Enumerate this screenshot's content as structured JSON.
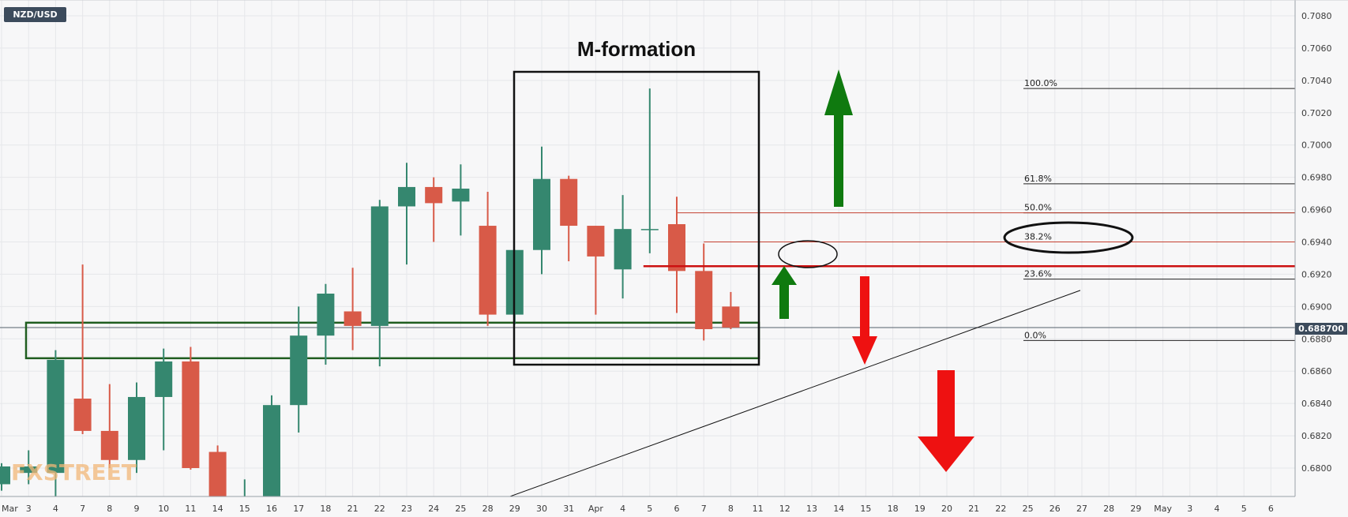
{
  "symbol": "NZD/USD",
  "watermark": "FXSTREET",
  "price_label": "0.688700",
  "colors": {
    "up": "#35876f",
    "down": "#d85a48",
    "background": "#f7f7f8",
    "badge": "#3c4b5c"
  },
  "chart_data": {
    "type": "candlestick",
    "title": "M-formation",
    "ylim": [
      0.678,
      0.709
    ],
    "y_ticks": [
      "0.6800",
      "0.6820",
      "0.6840",
      "0.6860",
      "0.6880",
      "0.6900",
      "0.6920",
      "0.6940",
      "0.6960",
      "0.6980",
      "0.7000",
      "0.7020",
      "0.7040",
      "0.7060",
      "0.7080"
    ],
    "x_ticks": [
      "Mar",
      "3",
      "4",
      "7",
      "8",
      "9",
      "10",
      "11",
      "14",
      "15",
      "16",
      "17",
      "18",
      "21",
      "22",
      "23",
      "24",
      "25",
      "28",
      "29",
      "30",
      "31",
      "Apr",
      "4",
      "5",
      "6",
      "7",
      "8",
      "11",
      "12",
      "13",
      "14",
      "15",
      "18",
      "19",
      "20",
      "21",
      "22",
      "25",
      "26",
      "27",
      "28",
      "29",
      "May",
      "3",
      "4",
      "5",
      "6"
    ],
    "candles": [
      {
        "date": "Mar 2",
        "open": 0.679,
        "high": 0.6803,
        "low": 0.6786,
        "close": 0.6801
      },
      {
        "date": "Mar 3",
        "open": 0.6797,
        "high": 0.6811,
        "low": 0.679,
        "close": 0.6801
      },
      {
        "date": "Mar 4",
        "open": 0.6797,
        "high": 0.6873,
        "low": 0.6782,
        "close": 0.6867
      },
      {
        "date": "Mar 7",
        "open": 0.6843,
        "high": 0.6926,
        "low": 0.6821,
        "close": 0.6823
      },
      {
        "date": "Mar 8",
        "open": 0.6823,
        "high": 0.6852,
        "low": 0.68,
        "close": 0.6805
      },
      {
        "date": "Mar 9",
        "open": 0.6805,
        "high": 0.6853,
        "low": 0.6797,
        "close": 0.6844
      },
      {
        "date": "Mar 10",
        "open": 0.6844,
        "high": 0.6874,
        "low": 0.6811,
        "close": 0.6866
      },
      {
        "date": "Mar 11",
        "open": 0.6866,
        "high": 0.6875,
        "low": 0.6799,
        "close": 0.68
      },
      {
        "date": "Mar 14",
        "open": 0.681,
        "high": 0.6814,
        "low": 0.677,
        "close": 0.6772
      },
      {
        "date": "Mar 15",
        "open": 0.6772,
        "high": 0.6793,
        "low": 0.6765,
        "close": 0.6776
      },
      {
        "date": "Mar 16",
        "open": 0.6776,
        "high": 0.6845,
        "low": 0.677,
        "close": 0.6839
      },
      {
        "date": "Mar 17",
        "open": 0.6839,
        "high": 0.69,
        "low": 0.6822,
        "close": 0.6882
      },
      {
        "date": "Mar 18",
        "open": 0.6882,
        "high": 0.6914,
        "low": 0.6864,
        "close": 0.6908
      },
      {
        "date": "Mar 21",
        "open": 0.6897,
        "high": 0.6924,
        "low": 0.6873,
        "close": 0.6888
      },
      {
        "date": "Mar 22",
        "open": 0.6888,
        "high": 0.6966,
        "low": 0.6863,
        "close": 0.6962
      },
      {
        "date": "Mar 23",
        "open": 0.6962,
        "high": 0.6989,
        "low": 0.6926,
        "close": 0.6974
      },
      {
        "date": "Mar 24",
        "open": 0.6974,
        "high": 0.698,
        "low": 0.694,
        "close": 0.6964
      },
      {
        "date": "Mar 25",
        "open": 0.6965,
        "high": 0.6988,
        "low": 0.6944,
        "close": 0.6973
      },
      {
        "date": "Mar 28",
        "open": 0.695,
        "high": 0.6971,
        "low": 0.6888,
        "close": 0.6895
      },
      {
        "date": "Mar 29",
        "open": 0.6895,
        "high": 0.6935,
        "low": 0.6889,
        "close": 0.6935
      },
      {
        "date": "Mar 30",
        "open": 0.6935,
        "high": 0.6999,
        "low": 0.692,
        "close": 0.6979
      },
      {
        "date": "Mar 31",
        "open": 0.6979,
        "high": 0.6981,
        "low": 0.6928,
        "close": 0.695
      },
      {
        "date": "Apr 1",
        "open": 0.695,
        "high": 0.695,
        "low": 0.6895,
        "close": 0.6931
      },
      {
        "date": "Apr 4",
        "open": 0.6923,
        "high": 0.6969,
        "low": 0.6905,
        "close": 0.6948
      },
      {
        "date": "Apr 5",
        "open": 0.6948,
        "high": 0.7035,
        "low": 0.6933,
        "close": 0.6948
      },
      {
        "date": "Apr 6",
        "open": 0.6951,
        "high": 0.6968,
        "low": 0.6896,
        "close": 0.6922
      },
      {
        "date": "Apr 7",
        "open": 0.6922,
        "high": 0.6939,
        "low": 0.6879,
        "close": 0.6886
      },
      {
        "date": "Apr 8",
        "open": 0.69,
        "high": 0.6909,
        "low": 0.6886,
        "close": 0.6887
      }
    ],
    "fibonacci": [
      {
        "label": "100.0%",
        "value": 0.7035
      },
      {
        "label": "61.8%",
        "value": 0.6976
      },
      {
        "label": "50.0%",
        "value": 0.6958
      },
      {
        "label": "38.2%",
        "value": 0.694
      },
      {
        "label": "23.6%",
        "value": 0.6917
      },
      {
        "label": "0.0%",
        "value": 0.6879
      }
    ],
    "current_price": 0.6887,
    "support_level": 0.6925,
    "support_zone": [
      0.6868,
      0.689
    ]
  }
}
